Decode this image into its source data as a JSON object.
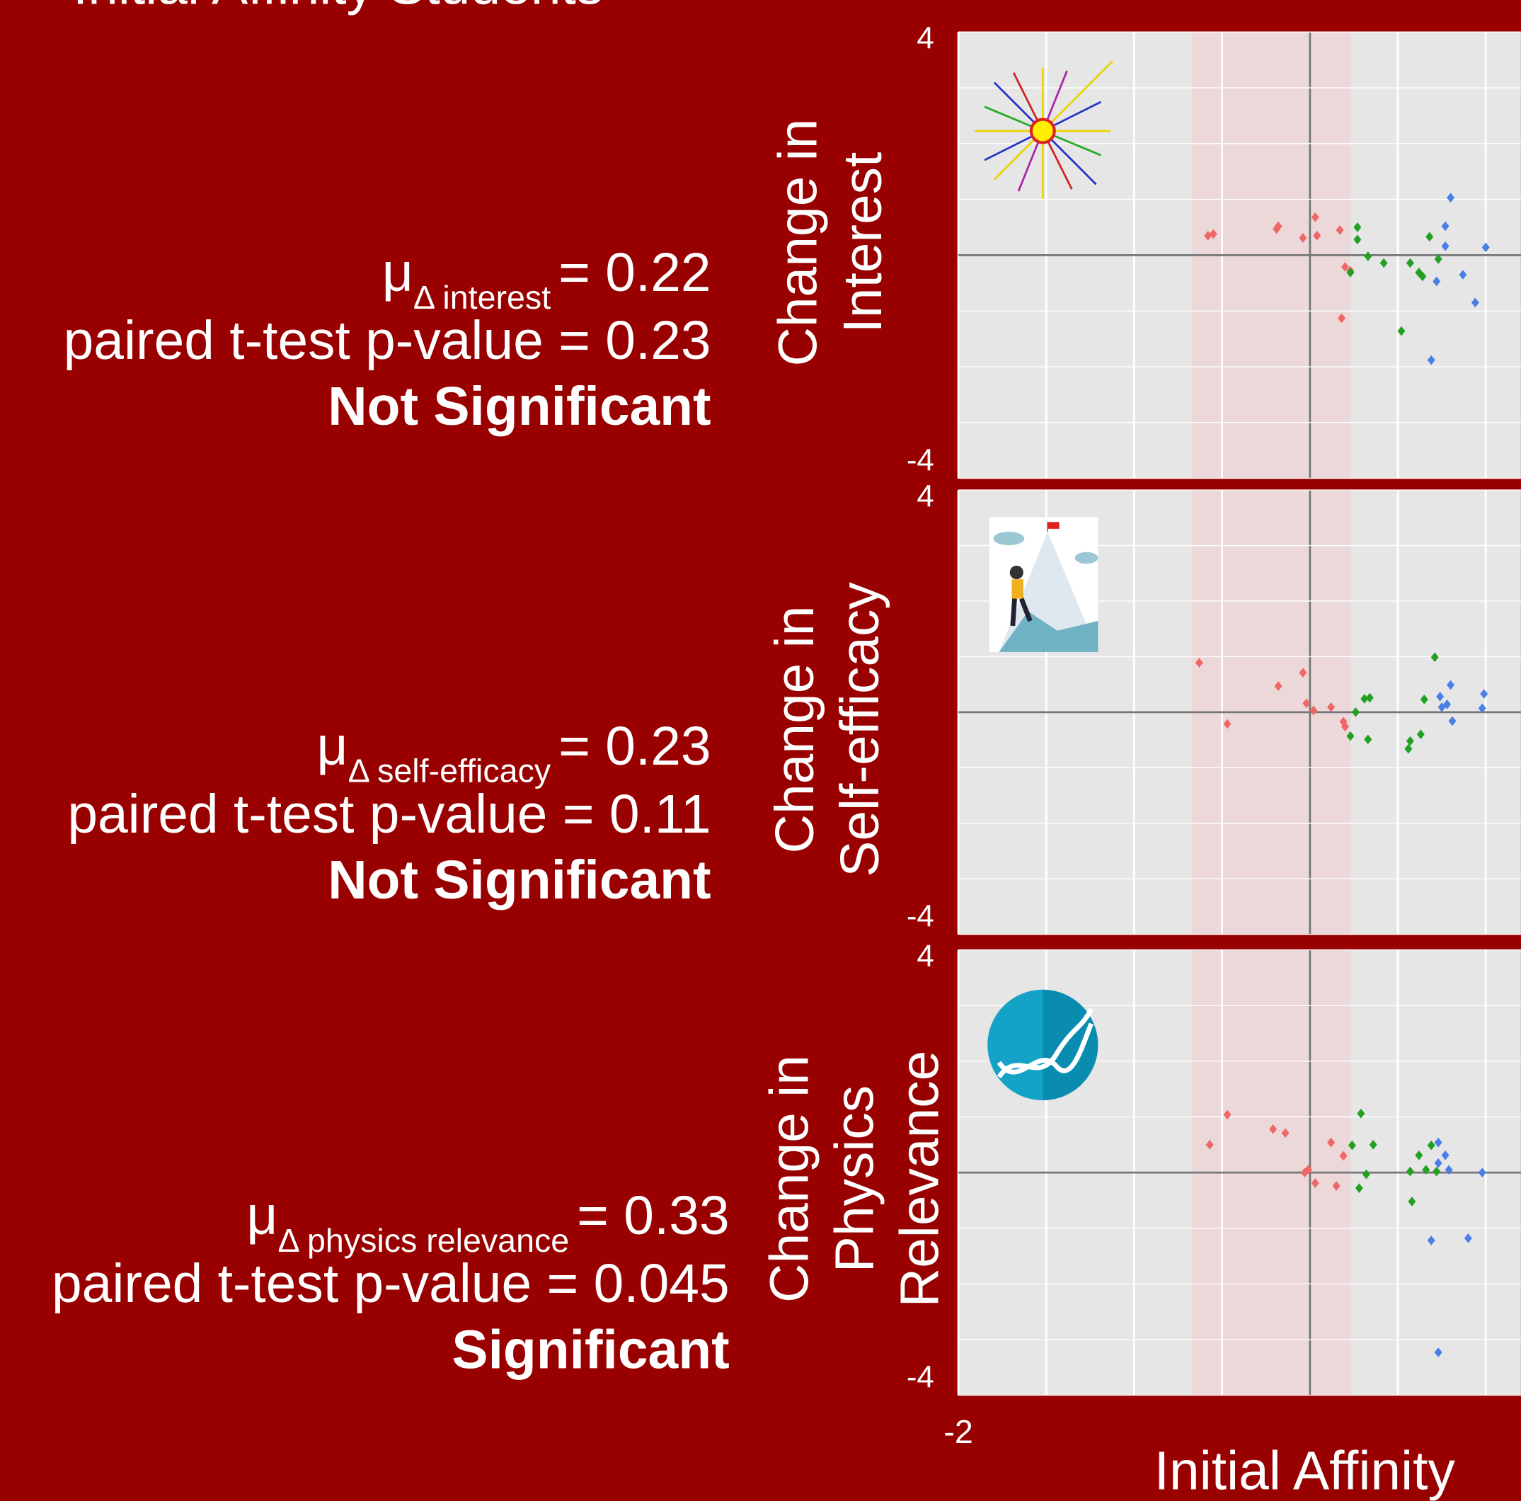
{
  "title": "Initial Affinity Students",
  "chart_data": [
    {
      "type": "scatter",
      "y_label": [
        "Change in",
        "Interest"
      ],
      "stats": {
        "mu": "μ",
        "subscript": "Δ interest",
        "mean": "= 0.22",
        "p_value": "paired t-test p-value = 0.23",
        "significance": "Not Significant"
      },
      "xlim": [
        -2,
        1.2
      ],
      "ylim": [
        -4,
        4
      ],
      "yticks": [
        -4,
        4
      ],
      "xgrid": [
        -2,
        -1.5,
        -1,
        -0.5,
        0,
        0.5,
        1
      ],
      "ygrid": [
        -4,
        -3,
        -2,
        -1,
        0,
        1,
        2,
        3,
        4
      ],
      "shade": [
        -0.67,
        0.23
      ],
      "series": [
        {
          "color": "#ee6666",
          "x": [
            -0.58,
            -0.55,
            -0.19,
            -0.18,
            -0.04,
            0.03,
            0.04,
            0.17,
            0.2,
            0.23,
            0.18
          ],
          "values": [
            0.35,
            0.38,
            0.47,
            0.52,
            0.31,
            0.68,
            0.35,
            0.45,
            -0.21,
            -0.28,
            -1.13
          ]
        },
        {
          "color": "#22a022",
          "x": [
            0.27,
            0.27,
            0.23,
            0.33,
            0.42,
            0.57,
            0.62,
            0.64,
            0.68,
            0.52,
            0.73
          ],
          "values": [
            0.5,
            0.28,
            -0.31,
            -0.02,
            -0.14,
            -0.14,
            -0.31,
            -0.38,
            0.33,
            -1.36,
            -0.07
          ]
        },
        {
          "color": "#4a7fe6",
          "x": [
            0.8,
            0.77,
            0.77,
            1.0,
            0.72,
            0.87,
            0.94,
            0.69
          ],
          "values": [
            1.03,
            0.52,
            0.16,
            0.14,
            -0.47,
            -0.35,
            -0.85,
            -1.88
          ]
        }
      ]
    },
    {
      "type": "scatter",
      "y_label": [
        "Change in",
        "Self-efficacy"
      ],
      "stats": {
        "mu": "μ",
        "subscript": "Δ self-efficacy",
        "mean": "= 0.23",
        "p_value": "paired t-test p-value =  0.11",
        "significance": "Not Significant"
      },
      "xlim": [
        -2,
        1.2
      ],
      "ylim": [
        -4,
        4
      ],
      "yticks": [
        -4,
        4
      ],
      "xgrid": [
        -2,
        -1.5,
        -1,
        -0.5,
        0,
        0.5,
        1
      ],
      "ygrid": [
        -4,
        -3,
        -2,
        -1,
        0,
        1,
        2,
        3,
        4
      ],
      "shade": [
        -0.67,
        0.23
      ],
      "series": [
        {
          "color": "#ee6666",
          "x": [
            -0.63,
            -0.47,
            -0.18,
            -0.04,
            -0.02,
            0.02,
            0.12,
            0.19,
            0.2
          ],
          "values": [
            0.89,
            -0.21,
            0.47,
            0.71,
            0.16,
            0.03,
            0.09,
            -0.17,
            -0.26
          ]
        },
        {
          "color": "#22a022",
          "x": [
            0.26,
            0.23,
            0.31,
            0.34,
            0.33,
            0.65,
            0.71,
            0.63,
            0.57,
            0.56
          ],
          "values": [
            0,
            -0.43,
            0.24,
            0.26,
            -0.49,
            0.23,
            0.99,
            -0.4,
            -0.52,
            -0.66
          ]
        },
        {
          "color": "#4a7fe6",
          "x": [
            0.8,
            0.74,
            0.78,
            0.75,
            0.81,
            0.99,
            0.98
          ],
          "values": [
            0.49,
            0.28,
            0.14,
            0.09,
            -0.16,
            0.33,
            0.07
          ]
        }
      ]
    },
    {
      "type": "scatter",
      "y_label": [
        "Change in",
        "Physics",
        "Relevance"
      ],
      "stats": {
        "mu": "μ",
        "subscript": "Δ physics relevance",
        "mean": "= 0.33",
        "p_value": "paired t-test p-value = 0.045",
        "significance": "Significant"
      },
      "x_label": "Initial Affinity",
      "xlim": [
        -2,
        1.2
      ],
      "ylim": [
        -4,
        4
      ],
      "yticks": [
        -4,
        4
      ],
      "xticks": [
        -2
      ],
      "xgrid": [
        -2,
        -1.5,
        -1,
        -0.5,
        0,
        0.5,
        1
      ],
      "ygrid": [
        -4,
        -3,
        -2,
        -1,
        0,
        1,
        2,
        3,
        4
      ],
      "shade": [
        -0.67,
        0.23
      ],
      "series": [
        {
          "color": "#ee6666",
          "x": [
            -0.57,
            -0.47,
            -0.21,
            -0.14,
            -0.03,
            -0.01,
            0.03,
            0.12,
            0.15,
            0.19
          ],
          "values": [
            0.5,
            1.04,
            0.78,
            0.71,
            0,
            0.05,
            -0.19,
            0.54,
            -0.24,
            0.3
          ]
        },
        {
          "color": "#22a022",
          "x": [
            0.24,
            0.29,
            0.36,
            0.32,
            0.28,
            0.57,
            0.62,
            0.66,
            0.69,
            0.58,
            0.72
          ],
          "values": [
            0.49,
            1.06,
            0.5,
            -0.03,
            -0.28,
            0.02,
            0.31,
            0.05,
            0.49,
            -0.52,
            0.02
          ]
        },
        {
          "color": "#4a7fe6",
          "x": [
            0.73,
            0.77,
            0.73,
            0.79,
            0.98,
            0.69,
            0.9,
            0.73
          ],
          "values": [
            0.54,
            0.31,
            0.17,
            0.05,
            0,
            -1.22,
            -1.18,
            -3.23
          ]
        }
      ]
    }
  ]
}
